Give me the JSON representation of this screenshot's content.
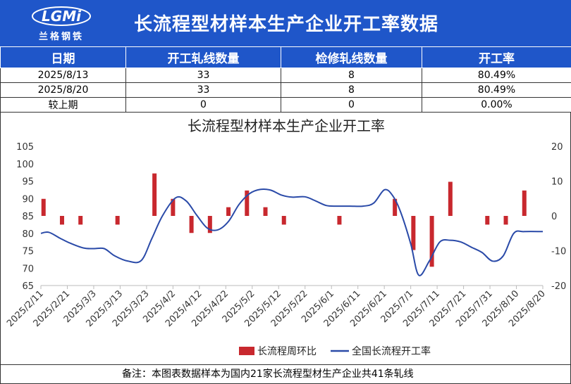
{
  "header": {
    "logo_text": "LGMi",
    "logo_sub": "兰格钢铁",
    "title": "长流程型材样本生产企业开工率数据"
  },
  "table": {
    "columns": [
      "日期",
      "开工轧线数量",
      "检修轧线数量",
      "开工率"
    ],
    "rows": [
      [
        "2025/8/13",
        "33",
        "8",
        "80.49%"
      ],
      [
        "2025/8/20",
        "33",
        "8",
        "80.49%"
      ],
      [
        "较上期",
        "0",
        "0",
        "0.00%"
      ]
    ]
  },
  "footer": {
    "note": "备注：本图表数据样本为国内21家长流程型材生产企业共41条轧线"
  },
  "colors": {
    "header_bg": "#1f56c9",
    "bar": "#c8282e",
    "line": "#2a4aa8"
  },
  "chart_data": {
    "type": "bar+line",
    "title": "长流程型材样本生产企业开工率",
    "x_tick_labels": [
      "2025/2/11",
      "2025/2/21",
      "2025/3/3",
      "2025/3/13",
      "2025/3/23",
      "2025/4/2",
      "2025/4/12",
      "2025/4/22",
      "2025/5/2",
      "2025/5/12",
      "2025/5/22",
      "2025/6/1",
      "2025/6/11",
      "2025/6/21",
      "2025/7/1",
      "2025/7/11",
      "2025/7/21",
      "2025/7/31",
      "2025/8/10",
      "2025/8/20"
    ],
    "x_range": [
      "2025/2/11",
      "2025/8/20"
    ],
    "y_left": {
      "min": 65,
      "max": 105,
      "step": 5,
      "ticks": [
        65,
        70,
        75,
        80,
        85,
        90,
        95,
        100,
        105
      ]
    },
    "y_right": {
      "min": -20,
      "max": 20,
      "step": 10,
      "ticks": [
        -20,
        -10,
        0,
        10,
        20
      ]
    },
    "legend": {
      "position": "bottom",
      "entries": [
        "长流程周环比",
        "全国长流程开工率"
      ]
    },
    "series": [
      {
        "name": "长流程周环比",
        "type": "bar",
        "axis": "right",
        "x": [
          "2025/2/12",
          "2025/2/19",
          "2025/2/26",
          "2025/3/12",
          "2025/3/26",
          "2025/4/2",
          "2025/4/9",
          "2025/4/16",
          "2025/4/23",
          "2025/4/30",
          "2025/5/7",
          "2025/5/14",
          "2025/6/4",
          "2025/6/25",
          "2025/7/2",
          "2025/7/9",
          "2025/7/16",
          "2025/7/30",
          "2025/8/6",
          "2025/8/13"
        ],
        "values": [
          4.9,
          -2.5,
          -2.5,
          -2.5,
          12.2,
          4.9,
          -4.9,
          -4.9,
          2.5,
          7.3,
          2.5,
          -2.5,
          -2.5,
          4.9,
          -9.8,
          -14.6,
          9.8,
          -2.5,
          -2.5,
          7.3
        ]
      },
      {
        "name": "全国长流程开工率",
        "type": "line",
        "axis": "left",
        "x": [
          "2025/2/11",
          "2025/2/14",
          "2025/2/18",
          "2025/2/22",
          "2025/2/27",
          "2025/3/3",
          "2025/3/7",
          "2025/3/11",
          "2025/3/16",
          "2025/3/21",
          "2025/3/25",
          "2025/3/29",
          "2025/4/3",
          "2025/4/7",
          "2025/4/11",
          "2025/4/15",
          "2025/4/19",
          "2025/4/23",
          "2025/4/27",
          "2025/5/1",
          "2025/5/5",
          "2025/5/9",
          "2025/5/13",
          "2025/5/17",
          "2025/5/22",
          "2025/5/26",
          "2025/5/30",
          "2025/6/3",
          "2025/6/8",
          "2025/6/13",
          "2025/6/17",
          "2025/6/21",
          "2025/6/24",
          "2025/6/27",
          "2025/7/1",
          "2025/7/4",
          "2025/7/8",
          "2025/7/12",
          "2025/7/16",
          "2025/7/20",
          "2025/7/24",
          "2025/7/28",
          "2025/8/1",
          "2025/8/5",
          "2025/8/9",
          "2025/8/13",
          "2025/8/20"
        ],
        "values": [
          80.0,
          80.3,
          78.7,
          77.2,
          75.8,
          75.6,
          75.6,
          73.5,
          72.0,
          72.2,
          78.5,
          85.0,
          90.2,
          89.3,
          85.2,
          81.5,
          81.0,
          83.4,
          88.3,
          91.4,
          92.6,
          92.4,
          91.0,
          90.4,
          90.5,
          89.3,
          88.0,
          87.8,
          87.8,
          87.8,
          88.7,
          92.5,
          91.0,
          86.5,
          77.0,
          68.0,
          72.0,
          77.5,
          78.0,
          77.5,
          76.0,
          74.5,
          72.0,
          73.5,
          80.0,
          80.49,
          80.49
        ]
      }
    ]
  }
}
